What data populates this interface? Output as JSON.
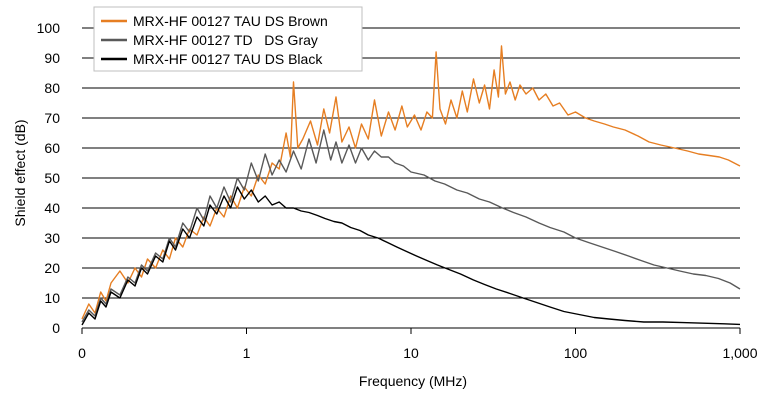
{
  "chart_data": {
    "type": "line",
    "title": "",
    "xlabel": "Frequency (MHz)",
    "ylabel": "Shield effect (dB)",
    "xscale": "log",
    "xlim": [
      0.1,
      1000
    ],
    "ylim": [
      0,
      100
    ],
    "x_ticks": [
      {
        "value": 0.1,
        "label": "0"
      },
      {
        "value": 1,
        "label": "1"
      },
      {
        "value": 10,
        "label": "10"
      },
      {
        "value": 100,
        "label": "100"
      },
      {
        "value": 1000,
        "label": "1,000"
      }
    ],
    "y_ticks": [
      0,
      10,
      20,
      30,
      40,
      50,
      60,
      70,
      80,
      90,
      100
    ],
    "grid": "horizontal",
    "legend_position": "top-left",
    "series": [
      {
        "name": "MRX-HF 00127 TAU DS Brown",
        "color": "#E67E22",
        "points": [
          [
            0.1,
            3
          ],
          [
            0.11,
            8
          ],
          [
            0.12,
            5
          ],
          [
            0.13,
            12
          ],
          [
            0.14,
            9
          ],
          [
            0.15,
            15
          ],
          [
            0.17,
            19
          ],
          [
            0.19,
            15
          ],
          [
            0.21,
            20
          ],
          [
            0.23,
            17
          ],
          [
            0.25,
            23
          ],
          [
            0.28,
            20
          ],
          [
            0.31,
            26
          ],
          [
            0.34,
            23
          ],
          [
            0.37,
            30
          ],
          [
            0.41,
            27
          ],
          [
            0.45,
            33
          ],
          [
            0.5,
            31
          ],
          [
            0.55,
            37
          ],
          [
            0.6,
            34
          ],
          [
            0.66,
            40
          ],
          [
            0.73,
            37
          ],
          [
            0.8,
            44
          ],
          [
            0.88,
            40
          ],
          [
            0.97,
            47
          ],
          [
            1.07,
            44
          ],
          [
            1.18,
            51
          ],
          [
            1.3,
            48
          ],
          [
            1.43,
            55
          ],
          [
            1.58,
            53
          ],
          [
            1.74,
            65
          ],
          [
            1.85,
            57
          ],
          [
            1.93,
            82
          ],
          [
            2.05,
            60
          ],
          [
            2.2,
            63
          ],
          [
            2.45,
            69
          ],
          [
            2.7,
            61
          ],
          [
            2.95,
            73
          ],
          [
            3.2,
            65
          ],
          [
            3.5,
            77
          ],
          [
            3.8,
            62
          ],
          [
            4.2,
            67
          ],
          [
            4.6,
            60
          ],
          [
            5.0,
            68
          ],
          [
            5.5,
            63
          ],
          [
            6.0,
            76
          ],
          [
            6.6,
            64
          ],
          [
            7.3,
            72
          ],
          [
            8.0,
            66
          ],
          [
            8.8,
            74
          ],
          [
            9.5,
            67
          ],
          [
            10.5,
            71
          ],
          [
            11.5,
            66
          ],
          [
            12.5,
            72
          ],
          [
            13.5,
            70
          ],
          [
            14.2,
            92
          ],
          [
            15.0,
            73
          ],
          [
            16.2,
            68
          ],
          [
            17.5,
            76
          ],
          [
            19.0,
            70
          ],
          [
            20.5,
            79
          ],
          [
            22.0,
            72
          ],
          [
            24.0,
            83
          ],
          [
            26.0,
            75
          ],
          [
            28.0,
            81
          ],
          [
            30.0,
            73
          ],
          [
            32.0,
            86
          ],
          [
            34.0,
            77
          ],
          [
            35.5,
            94
          ],
          [
            37.5,
            78
          ],
          [
            40.0,
            82
          ],
          [
            43.0,
            76
          ],
          [
            46.0,
            81
          ],
          [
            50.0,
            78
          ],
          [
            55.0,
            80
          ],
          [
            60.0,
            76
          ],
          [
            66.0,
            78
          ],
          [
            73.0,
            74
          ],
          [
            80.0,
            75
          ],
          [
            90.0,
            71
          ],
          [
            100.0,
            72
          ],
          [
            115.0,
            70
          ],
          [
            130.0,
            69
          ],
          [
            150.0,
            68
          ],
          [
            170.0,
            67
          ],
          [
            200.0,
            66
          ],
          [
            240.0,
            64
          ],
          [
            280.0,
            62
          ],
          [
            330.0,
            61
          ],
          [
            400.0,
            60
          ],
          [
            480.0,
            59
          ],
          [
            560.0,
            58
          ],
          [
            650.0,
            57.5
          ],
          [
            750.0,
            57
          ],
          [
            850.0,
            56
          ],
          [
            1000.0,
            54
          ]
        ]
      },
      {
        "name": "MRX-HF 00127 TD   DS Gray",
        "color": "#595959",
        "points": [
          [
            0.1,
            2
          ],
          [
            0.11,
            6
          ],
          [
            0.12,
            4
          ],
          [
            0.13,
            10
          ],
          [
            0.14,
            8
          ],
          [
            0.15,
            13
          ],
          [
            0.17,
            11
          ],
          [
            0.19,
            17
          ],
          [
            0.21,
            15
          ],
          [
            0.23,
            21
          ],
          [
            0.25,
            19
          ],
          [
            0.28,
            25
          ],
          [
            0.31,
            23
          ],
          [
            0.34,
            30
          ],
          [
            0.37,
            27
          ],
          [
            0.41,
            35
          ],
          [
            0.45,
            32
          ],
          [
            0.5,
            40
          ],
          [
            0.55,
            36
          ],
          [
            0.6,
            44
          ],
          [
            0.66,
            40
          ],
          [
            0.73,
            47
          ],
          [
            0.8,
            42
          ],
          [
            0.88,
            50
          ],
          [
            0.97,
            46
          ],
          [
            1.07,
            55
          ],
          [
            1.18,
            49
          ],
          [
            1.3,
            58
          ],
          [
            1.43,
            51
          ],
          [
            1.58,
            56
          ],
          [
            1.74,
            52
          ],
          [
            1.93,
            59
          ],
          [
            2.15,
            53
          ],
          [
            2.4,
            63
          ],
          [
            2.65,
            55
          ],
          [
            2.95,
            66
          ],
          [
            3.25,
            56
          ],
          [
            3.5,
            62
          ],
          [
            3.8,
            55
          ],
          [
            4.2,
            61
          ],
          [
            4.6,
            55
          ],
          [
            5.0,
            60
          ],
          [
            5.5,
            56
          ],
          [
            6.0,
            59
          ],
          [
            6.6,
            57
          ],
          [
            7.3,
            57
          ],
          [
            8.0,
            55
          ],
          [
            9.0,
            54
          ],
          [
            10.0,
            52
          ],
          [
            12.0,
            51
          ],
          [
            14.0,
            49
          ],
          [
            16.0,
            48
          ],
          [
            19.0,
            46
          ],
          [
            22.0,
            45
          ],
          [
            26.0,
            43
          ],
          [
            30.0,
            42
          ],
          [
            36.0,
            40
          ],
          [
            42.0,
            38.5
          ],
          [
            50.0,
            37
          ],
          [
            60.0,
            35
          ],
          [
            70.0,
            33.5
          ],
          [
            85.0,
            32
          ],
          [
            100.0,
            30
          ],
          [
            120.0,
            28.5
          ],
          [
            145.0,
            27
          ],
          [
            175.0,
            25.5
          ],
          [
            210.0,
            24
          ],
          [
            250.0,
            22.5
          ],
          [
            300.0,
            21
          ],
          [
            360.0,
            20
          ],
          [
            430.0,
            19
          ],
          [
            520.0,
            18
          ],
          [
            620.0,
            17.5
          ],
          [
            740.0,
            16.5
          ],
          [
            870.0,
            15
          ],
          [
            1000.0,
            13
          ]
        ]
      },
      {
        "name": "MRX-HF 00127 TAU DS Black",
        "color": "#000000",
        "points": [
          [
            0.1,
            1
          ],
          [
            0.11,
            5
          ],
          [
            0.12,
            3
          ],
          [
            0.13,
            9
          ],
          [
            0.14,
            7
          ],
          [
            0.15,
            12
          ],
          [
            0.17,
            10
          ],
          [
            0.19,
            16
          ],
          [
            0.21,
            14
          ],
          [
            0.23,
            20
          ],
          [
            0.25,
            18
          ],
          [
            0.28,
            24
          ],
          [
            0.31,
            22
          ],
          [
            0.34,
            29
          ],
          [
            0.37,
            26
          ],
          [
            0.41,
            33
          ],
          [
            0.45,
            30
          ],
          [
            0.5,
            37
          ],
          [
            0.55,
            34
          ],
          [
            0.6,
            41
          ],
          [
            0.66,
            38
          ],
          [
            0.73,
            44
          ],
          [
            0.8,
            40
          ],
          [
            0.88,
            47
          ],
          [
            0.97,
            43
          ],
          [
            1.07,
            46
          ],
          [
            1.18,
            42
          ],
          [
            1.3,
            44
          ],
          [
            1.43,
            41
          ],
          [
            1.58,
            42
          ],
          [
            1.74,
            40
          ],
          [
            1.93,
            40
          ],
          [
            2.15,
            39
          ],
          [
            2.4,
            38.5
          ],
          [
            2.7,
            37.5
          ],
          [
            3.0,
            36.5
          ],
          [
            3.4,
            35.5
          ],
          [
            3.8,
            35
          ],
          [
            4.3,
            33.5
          ],
          [
            4.9,
            32.5
          ],
          [
            5.5,
            31
          ],
          [
            6.3,
            30
          ],
          [
            7.2,
            28.5
          ],
          [
            8.2,
            27
          ],
          [
            9.4,
            25.5
          ],
          [
            10.8,
            24
          ],
          [
            12.5,
            22.5
          ],
          [
            14.5,
            21
          ],
          [
            17.0,
            19.5
          ],
          [
            20.0,
            18
          ],
          [
            24.0,
            16
          ],
          [
            28.0,
            14.5
          ],
          [
            33.0,
            13
          ],
          [
            40.0,
            11.5
          ],
          [
            48.0,
            10
          ],
          [
            58.0,
            8.5
          ],
          [
            70.0,
            7
          ],
          [
            85.0,
            5.5
          ],
          [
            105.0,
            4.5
          ],
          [
            130.0,
            3.5
          ],
          [
            160.0,
            3
          ],
          [
            200.0,
            2.5
          ],
          [
            260.0,
            2
          ],
          [
            340.0,
            2
          ],
          [
            450.0,
            1.8
          ],
          [
            600.0,
            1.6
          ],
          [
            800.0,
            1.4
          ],
          [
            1000.0,
            1.2
          ]
        ]
      }
    ]
  }
}
